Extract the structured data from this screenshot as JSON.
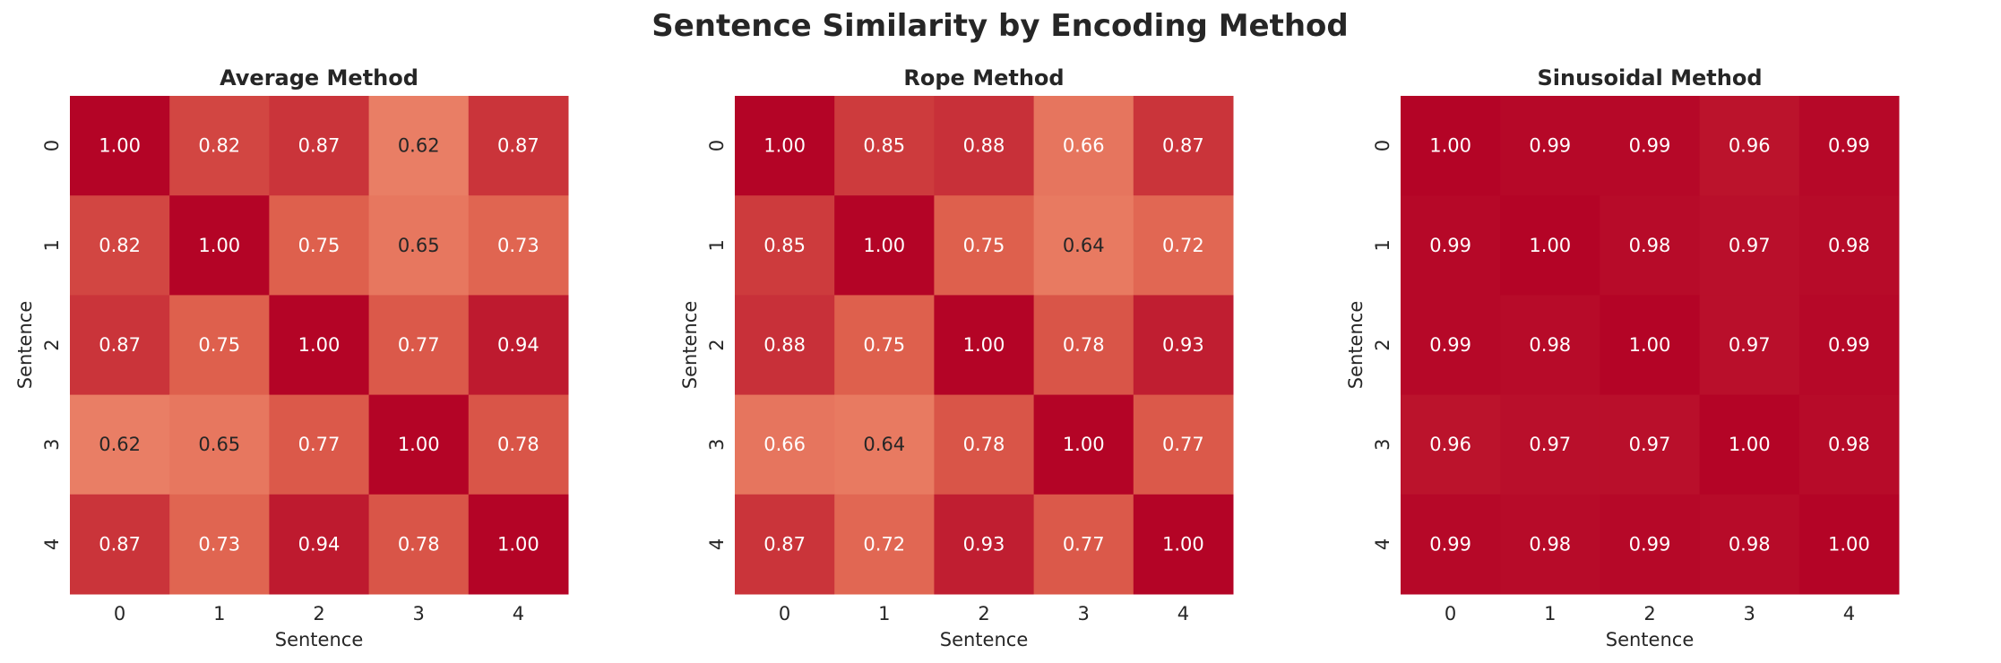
{
  "figure_title": "Sentence Similarity by Encoding Method",
  "chart_data": [
    {
      "type": "heatmap",
      "title": "Average Method",
      "xlabel": "Sentence",
      "ylabel": "Sentence",
      "x_ticks": [
        "0",
        "1",
        "2",
        "3",
        "4"
      ],
      "y_ticks": [
        "0",
        "1",
        "2",
        "3",
        "4"
      ],
      "matrix": [
        [
          1.0,
          0.82,
          0.87,
          0.62,
          0.87
        ],
        [
          0.82,
          1.0,
          0.75,
          0.65,
          0.73
        ],
        [
          0.87,
          0.75,
          1.0,
          0.77,
          0.94
        ],
        [
          0.62,
          0.65,
          0.77,
          1.0,
          0.78
        ],
        [
          0.87,
          0.73,
          0.94,
          0.78,
          1.0
        ]
      ],
      "labels": [
        [
          "1.00",
          "0.82",
          "0.87",
          "0.62",
          "0.87"
        ],
        [
          "0.82",
          "1.00",
          "0.75",
          "0.65",
          "0.73"
        ],
        [
          "0.87",
          "0.75",
          "1.00",
          "0.77",
          "0.94"
        ],
        [
          "0.62",
          "0.65",
          "0.77",
          "1.00",
          "0.78"
        ],
        [
          "0.87",
          "0.73",
          "0.94",
          "0.78",
          "1.00"
        ]
      ],
      "colormap": "coolwarm",
      "vmin": -1,
      "vmax": 1,
      "colorbar": false
    },
    {
      "type": "heatmap",
      "title": "Rope Method",
      "xlabel": "Sentence",
      "ylabel": "Sentence",
      "x_ticks": [
        "0",
        "1",
        "2",
        "3",
        "4"
      ],
      "y_ticks": [
        "0",
        "1",
        "2",
        "3",
        "4"
      ],
      "matrix": [
        [
          1.0,
          0.85,
          0.88,
          0.66,
          0.87
        ],
        [
          0.85,
          1.0,
          0.75,
          0.64,
          0.72
        ],
        [
          0.88,
          0.75,
          1.0,
          0.78,
          0.93
        ],
        [
          0.66,
          0.64,
          0.78,
          1.0,
          0.77
        ],
        [
          0.87,
          0.72,
          0.93,
          0.77,
          1.0
        ]
      ],
      "labels": [
        [
          "1.00",
          "0.85",
          "0.88",
          "0.66",
          "0.87"
        ],
        [
          "0.85",
          "1.00",
          "0.75",
          "0.64",
          "0.72"
        ],
        [
          "0.88",
          "0.75",
          "1.00",
          "0.78",
          "0.93"
        ],
        [
          "0.66",
          "0.64",
          "0.78",
          "1.00",
          "0.77"
        ],
        [
          "0.87",
          "0.72",
          "0.93",
          "0.77",
          "1.00"
        ]
      ],
      "colormap": "coolwarm",
      "vmin": -1,
      "vmax": 1,
      "colorbar": false
    },
    {
      "type": "heatmap",
      "title": "Sinusoidal Method",
      "xlabel": "Sentence",
      "ylabel": "Sentence",
      "x_ticks": [
        "0",
        "1",
        "2",
        "3",
        "4"
      ],
      "y_ticks": [
        "0",
        "1",
        "2",
        "3",
        "4"
      ],
      "matrix": [
        [
          1.0,
          0.99,
          0.99,
          0.96,
          0.99
        ],
        [
          0.99,
          1.0,
          0.98,
          0.97,
          0.98
        ],
        [
          0.99,
          0.98,
          1.0,
          0.97,
          0.99
        ],
        [
          0.96,
          0.97,
          0.97,
          1.0,
          0.98
        ],
        [
          0.99,
          0.98,
          0.99,
          0.98,
          1.0
        ]
      ],
      "labels": [
        [
          "1.00",
          "0.99",
          "0.99",
          "0.96",
          "0.99"
        ],
        [
          "0.99",
          "1.00",
          "0.98",
          "0.97",
          "0.98"
        ],
        [
          "0.99",
          "0.98",
          "1.00",
          "0.97",
          "0.99"
        ],
        [
          "0.96",
          "0.97",
          "0.97",
          "1.00",
          "0.98"
        ],
        [
          "0.99",
          "0.98",
          "0.99",
          "0.98",
          "1.00"
        ]
      ],
      "colormap": "coolwarm",
      "vmin": -1,
      "vmax": 1,
      "colorbar": false
    }
  ]
}
